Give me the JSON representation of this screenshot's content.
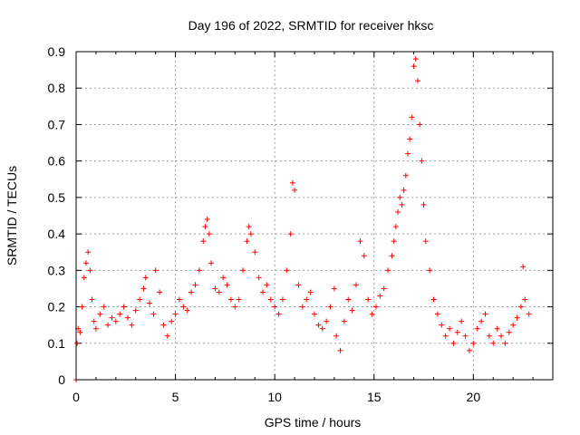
{
  "chart_data": {
    "type": "scatter",
    "title": "Day 196 of 2022, SRMTID for receiver hksc",
    "xlabel": "GPS time / hours",
    "ylabel": "SRMTID / TECUs",
    "xlim": [
      0,
      24
    ],
    "ylim": [
      0,
      0.9
    ],
    "x_ticks": [
      0,
      5,
      10,
      15,
      20
    ],
    "y_ticks": [
      0,
      0.1,
      0.2,
      0.3,
      0.4,
      0.5,
      0.6,
      0.7,
      0.8,
      0.9
    ],
    "x_tick_labels": [
      "0",
      "5",
      "10",
      "15",
      "20"
    ],
    "y_tick_labels": [
      "0",
      "0.1",
      "0.2",
      "0.3",
      "0.4",
      "0.5",
      "0.6",
      "0.7",
      "0.8",
      "0.9"
    ],
    "grid": true,
    "marker": "+",
    "marker_color": "#ff0000",
    "series": [
      {
        "name": "SRMTID",
        "x": [
          0.0,
          0.05,
          0.1,
          0.2,
          0.3,
          0.4,
          0.5,
          0.6,
          0.7,
          0.8,
          0.9,
          1.0,
          1.2,
          1.4,
          1.6,
          1.8,
          2.0,
          2.2,
          2.4,
          2.6,
          2.8,
          3.0,
          3.2,
          3.4,
          3.5,
          3.7,
          3.9,
          4.0,
          4.2,
          4.4,
          4.6,
          4.8,
          5.0,
          5.2,
          5.4,
          5.6,
          5.8,
          6.0,
          6.2,
          6.4,
          6.5,
          6.6,
          6.7,
          6.8,
          7.0,
          7.2,
          7.4,
          7.6,
          7.8,
          8.0,
          8.2,
          8.4,
          8.6,
          8.7,
          8.8,
          9.0,
          9.2,
          9.4,
          9.6,
          9.8,
          10.0,
          10.2,
          10.4,
          10.6,
          10.8,
          10.9,
          11.0,
          11.2,
          11.4,
          11.6,
          11.8,
          12.0,
          12.2,
          12.4,
          12.6,
          12.8,
          13.0,
          13.1,
          13.3,
          13.5,
          13.7,
          13.9,
          14.1,
          14.3,
          14.5,
          14.7,
          14.9,
          15.1,
          15.3,
          15.5,
          15.7,
          15.9,
          16.0,
          16.1,
          16.2,
          16.3,
          16.4,
          16.5,
          16.6,
          16.7,
          16.8,
          16.9,
          17.0,
          17.1,
          17.2,
          17.3,
          17.4,
          17.5,
          17.6,
          17.8,
          18.0,
          18.2,
          18.4,
          18.6,
          18.8,
          19.0,
          19.2,
          19.4,
          19.6,
          19.8,
          20.0,
          20.2,
          20.4,
          20.6,
          20.8,
          21.0,
          21.2,
          21.4,
          21.6,
          21.8,
          22.0,
          22.2,
          22.4,
          22.5,
          22.6,
          22.8
        ],
        "y": [
          0.0,
          0.1,
          0.14,
          0.13,
          0.2,
          0.28,
          0.32,
          0.35,
          0.3,
          0.22,
          0.16,
          0.14,
          0.18,
          0.2,
          0.15,
          0.17,
          0.16,
          0.18,
          0.2,
          0.17,
          0.15,
          0.19,
          0.22,
          0.25,
          0.28,
          0.21,
          0.18,
          0.3,
          0.24,
          0.15,
          0.12,
          0.16,
          0.18,
          0.22,
          0.2,
          0.19,
          0.24,
          0.26,
          0.3,
          0.38,
          0.42,
          0.44,
          0.4,
          0.32,
          0.25,
          0.24,
          0.28,
          0.26,
          0.22,
          0.2,
          0.22,
          0.3,
          0.38,
          0.42,
          0.4,
          0.35,
          0.28,
          0.24,
          0.26,
          0.22,
          0.2,
          0.18,
          0.22,
          0.3,
          0.4,
          0.54,
          0.52,
          0.26,
          0.2,
          0.22,
          0.24,
          0.18,
          0.15,
          0.14,
          0.16,
          0.2,
          0.25,
          0.12,
          0.08,
          0.16,
          0.22,
          0.19,
          0.26,
          0.38,
          0.34,
          0.22,
          0.18,
          0.2,
          0.23,
          0.25,
          0.3,
          0.34,
          0.38,
          0.42,
          0.46,
          0.5,
          0.48,
          0.52,
          0.56,
          0.62,
          0.66,
          0.72,
          0.86,
          0.88,
          0.82,
          0.7,
          0.6,
          0.48,
          0.38,
          0.3,
          0.22,
          0.18,
          0.15,
          0.12,
          0.14,
          0.1,
          0.13,
          0.16,
          0.12,
          0.08,
          0.1,
          0.14,
          0.16,
          0.18,
          0.12,
          0.1,
          0.14,
          0.12,
          0.1,
          0.13,
          0.15,
          0.17,
          0.2,
          0.31,
          0.22,
          0.18
        ]
      }
    ]
  }
}
